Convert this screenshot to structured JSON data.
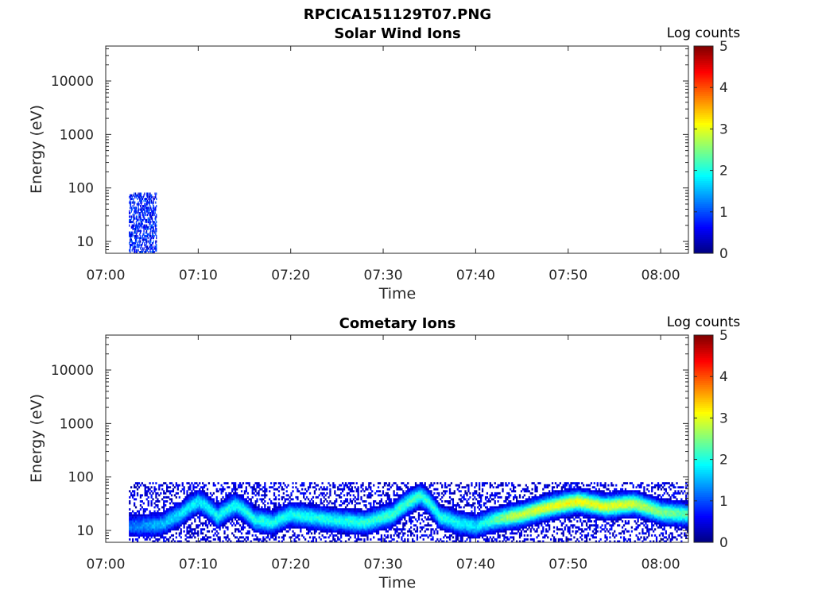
{
  "figure": {
    "title": "RPCICA151129T07.PNG"
  },
  "chart_data": [
    {
      "type": "heatmap",
      "title": "Solar Wind Ions",
      "xlabel": "Time",
      "ylabel": "Energy (eV)",
      "yscale": "log",
      "xlim_minutes_after_07_00": [
        0,
        63
      ],
      "ylim_eV": [
        6,
        45000
      ],
      "xticks": [
        "07:00",
        "07:10",
        "07:20",
        "07:30",
        "07:40",
        "07:50",
        "08:00"
      ],
      "yticks": [
        "10",
        "100",
        "1000",
        "10000"
      ],
      "colorbar": {
        "label": "Log counts",
        "range": [
          0,
          5
        ],
        "ticks": [
          "0",
          "1",
          "2",
          "3",
          "4",
          "5"
        ],
        "colormap": "jet"
      },
      "signal": [
        {
          "t_start": "07:02.5",
          "t_end": "07:05.5",
          "e_min_eV": 6,
          "e_max_eV": 80,
          "log_counts": 0.8,
          "note": "sparse dots"
        }
      ]
    },
    {
      "type": "heatmap",
      "title": "Cometary Ions",
      "xlabel": "Time",
      "ylabel": "Energy (eV)",
      "yscale": "log",
      "xlim_minutes_after_07_00": [
        0,
        63
      ],
      "ylim_eV": [
        6,
        45000
      ],
      "xticks": [
        "07:00",
        "07:10",
        "07:20",
        "07:30",
        "07:40",
        "07:50",
        "08:00"
      ],
      "yticks": [
        "10",
        "100",
        "1000",
        "10000"
      ],
      "colorbar": {
        "label": "Log counts",
        "range": [
          0,
          5
        ],
        "ticks": [
          "0",
          "1",
          "2",
          "3",
          "4",
          "5"
        ],
        "colormap": "jet"
      },
      "band_center_eV": [
        {
          "t": 2.5,
          "e": 12
        },
        {
          "t": 6,
          "e": 13
        },
        {
          "t": 8,
          "e": 20
        },
        {
          "t": 10,
          "e": 35
        },
        {
          "t": 12,
          "e": 18
        },
        {
          "t": 14,
          "e": 30
        },
        {
          "t": 16,
          "e": 16
        },
        {
          "t": 18,
          "e": 14
        },
        {
          "t": 20,
          "e": 20
        },
        {
          "t": 24,
          "e": 16
        },
        {
          "t": 28,
          "e": 14
        },
        {
          "t": 31,
          "e": 20
        },
        {
          "t": 34,
          "e": 45
        },
        {
          "t": 36,
          "e": 18
        },
        {
          "t": 38,
          "e": 14
        },
        {
          "t": 40,
          "e": 12
        },
        {
          "t": 42,
          "e": 16
        },
        {
          "t": 45,
          "e": 20
        },
        {
          "t": 48,
          "e": 28
        },
        {
          "t": 51,
          "e": 35
        },
        {
          "t": 54,
          "e": 28
        },
        {
          "t": 57,
          "e": 32
        },
        {
          "t": 60,
          "e": 22
        },
        {
          "t": 63,
          "e": 20
        }
      ],
      "band_peak_log_counts": [
        {
          "t": 2.5,
          "v": 1.2
        },
        {
          "t": 8,
          "v": 1.8
        },
        {
          "t": 15,
          "v": 2.0
        },
        {
          "t": 25,
          "v": 2.0
        },
        {
          "t": 33,
          "v": 2.2
        },
        {
          "t": 40,
          "v": 1.8
        },
        {
          "t": 44,
          "v": 2.8
        },
        {
          "t": 50,
          "v": 3.1
        },
        {
          "t": 56,
          "v": 3.0
        },
        {
          "t": 60,
          "v": 2.5
        },
        {
          "t": 63,
          "v": 2.3
        }
      ],
      "data_start": "07:02.5",
      "data_end": "08:03",
      "energy_range_eV": [
        6,
        80
      ]
    }
  ]
}
